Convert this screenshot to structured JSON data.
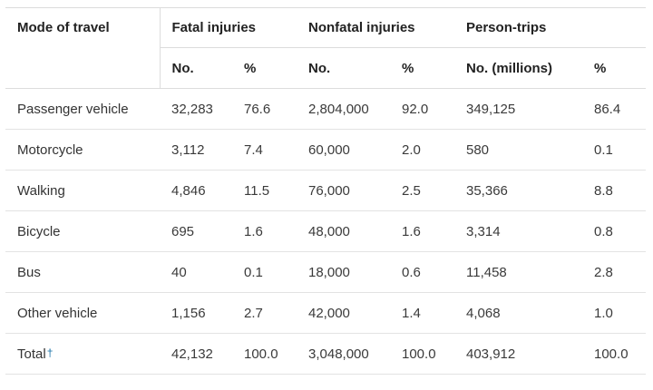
{
  "table": {
    "header": {
      "mode": "Mode of travel",
      "groups": [
        "Fatal injuries",
        "Nonfatal injuries",
        "Person-trips"
      ],
      "subheaders": [
        "No.",
        "%",
        "No.",
        "%",
        "No. (millions)",
        "%"
      ]
    },
    "rows": [
      {
        "mode": "Passenger vehicle",
        "fatal_no": "32,283",
        "fatal_pct": "76.6",
        "nonfatal_no": "2,804,000",
        "nonfatal_pct": "92.0",
        "trips_no": "349,125",
        "trips_pct": "86.4"
      },
      {
        "mode": "Motorcycle",
        "fatal_no": "3,112",
        "fatal_pct": "7.4",
        "nonfatal_no": "60,000",
        "nonfatal_pct": "2.0",
        "trips_no": "580",
        "trips_pct": "0.1"
      },
      {
        "mode": "Walking",
        "fatal_no": "4,846",
        "fatal_pct": "11.5",
        "nonfatal_no": "76,000",
        "nonfatal_pct": "2.5",
        "trips_no": "35,366",
        "trips_pct": "8.8"
      },
      {
        "mode": "Bicycle",
        "fatal_no": "695",
        "fatal_pct": "1.6",
        "nonfatal_no": "48,000",
        "nonfatal_pct": "1.6",
        "trips_no": "3,314",
        "trips_pct": "0.8"
      },
      {
        "mode": "Bus",
        "fatal_no": "40",
        "fatal_pct": "0.1",
        "nonfatal_no": "18,000",
        "nonfatal_pct": "0.6",
        "trips_no": "11,458",
        "trips_pct": "2.8"
      },
      {
        "mode": "Other vehicle",
        "fatal_no": "1,156",
        "fatal_pct": "2.7",
        "nonfatal_no": "42,000",
        "nonfatal_pct": "1.4",
        "trips_no": "4,068",
        "trips_pct": "1.0"
      }
    ],
    "total": {
      "mode": "Total",
      "dagger": "†",
      "fatal_no": "42,132",
      "fatal_pct": "100.0",
      "nonfatal_no": "3,048,000",
      "nonfatal_pct": "100.0",
      "trips_no": "403,912",
      "trips_pct": "100.0"
    }
  },
  "colors": {
    "dagger_link": "#1a73a8",
    "border": "#dcdcdc",
    "text": "#2b2b2b"
  }
}
